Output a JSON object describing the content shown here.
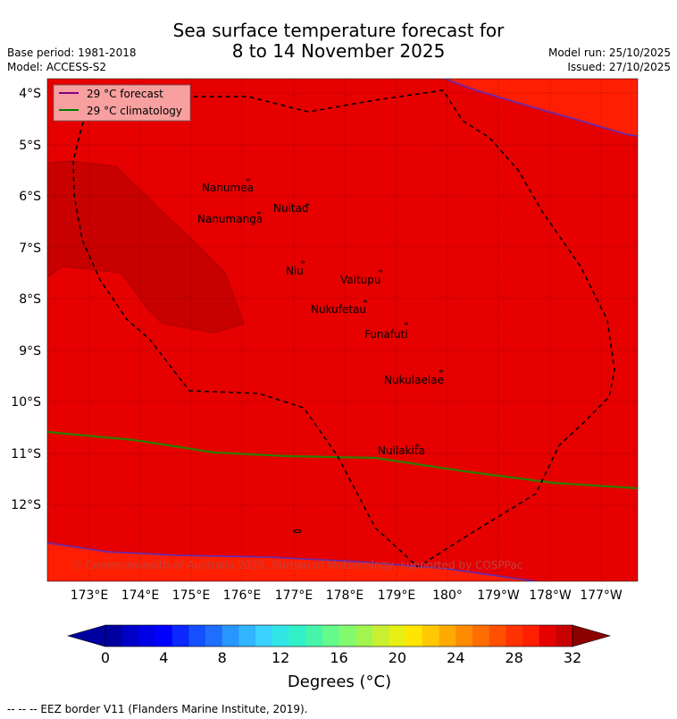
{
  "header": {
    "title_line1": "Sea surface temperature forecast for",
    "title_line2": "8 to 14 November 2025",
    "base_period": "Base period: 1981-2018",
    "model": "Model: ACCESS-S2",
    "model_run": "Model run: 25/10/2025",
    "issued": "Issued: 27/10/2025"
  },
  "map": {
    "lat_labels": [
      "4°S",
      "5°S",
      "6°S",
      "7°S",
      "8°S",
      "9°S",
      "10°S",
      "11°S",
      "12°S"
    ],
    "lon_labels": [
      "173°E",
      "174°E",
      "175°E",
      "176°E",
      "177°E",
      "178°E",
      "179°E",
      "180°",
      "179°W",
      "178°W",
      "177°W"
    ],
    "places": [
      "Nanumea",
      "Nanumanga",
      "Nuitao",
      "Niu",
      "Vaitupu",
      "Nukufetau",
      "Funafuti",
      "Nukulaelae",
      "Nuilakita"
    ],
    "copyright": "© Commonwealth of Australia 2025, Bureau of Meteorology, supported by COSPPac",
    "legend": [
      {
        "label": "29 °C  forecast",
        "color": "#800080"
      },
      {
        "label": "29 °C  climatology",
        "color": "#008000"
      }
    ],
    "colors": {
      "main_field": "#e60000",
      "warm_field": "#ff1e00",
      "cool_field": "#c80000",
      "eez_border": "#000000"
    }
  },
  "colorbar": {
    "tick_labels": [
      "0",
      "4",
      "8",
      "12",
      "16",
      "20",
      "24",
      "28",
      "32"
    ],
    "title": "Degrees (°C)",
    "colors": [
      "#0000a0",
      "#0000c8",
      "#0000e6",
      "#0000ff",
      "#0a28ff",
      "#1450ff",
      "#1e6eff",
      "#2896ff",
      "#32b4ff",
      "#3cd2ff",
      "#32e6e6",
      "#32f0c8",
      "#46f5aa",
      "#64fa8c",
      "#82fa6e",
      "#a0f550",
      "#c8f032",
      "#e6f014",
      "#ffe600",
      "#ffc800",
      "#ffaa00",
      "#ff8c00",
      "#ff6e00",
      "#ff5000",
      "#ff3200",
      "#ff1e00",
      "#e60000",
      "#c80000",
      "#8c0000"
    ]
  },
  "footnote": "-- -- -- EEZ border V11 (Flanders Marine Institute, 2019)."
}
